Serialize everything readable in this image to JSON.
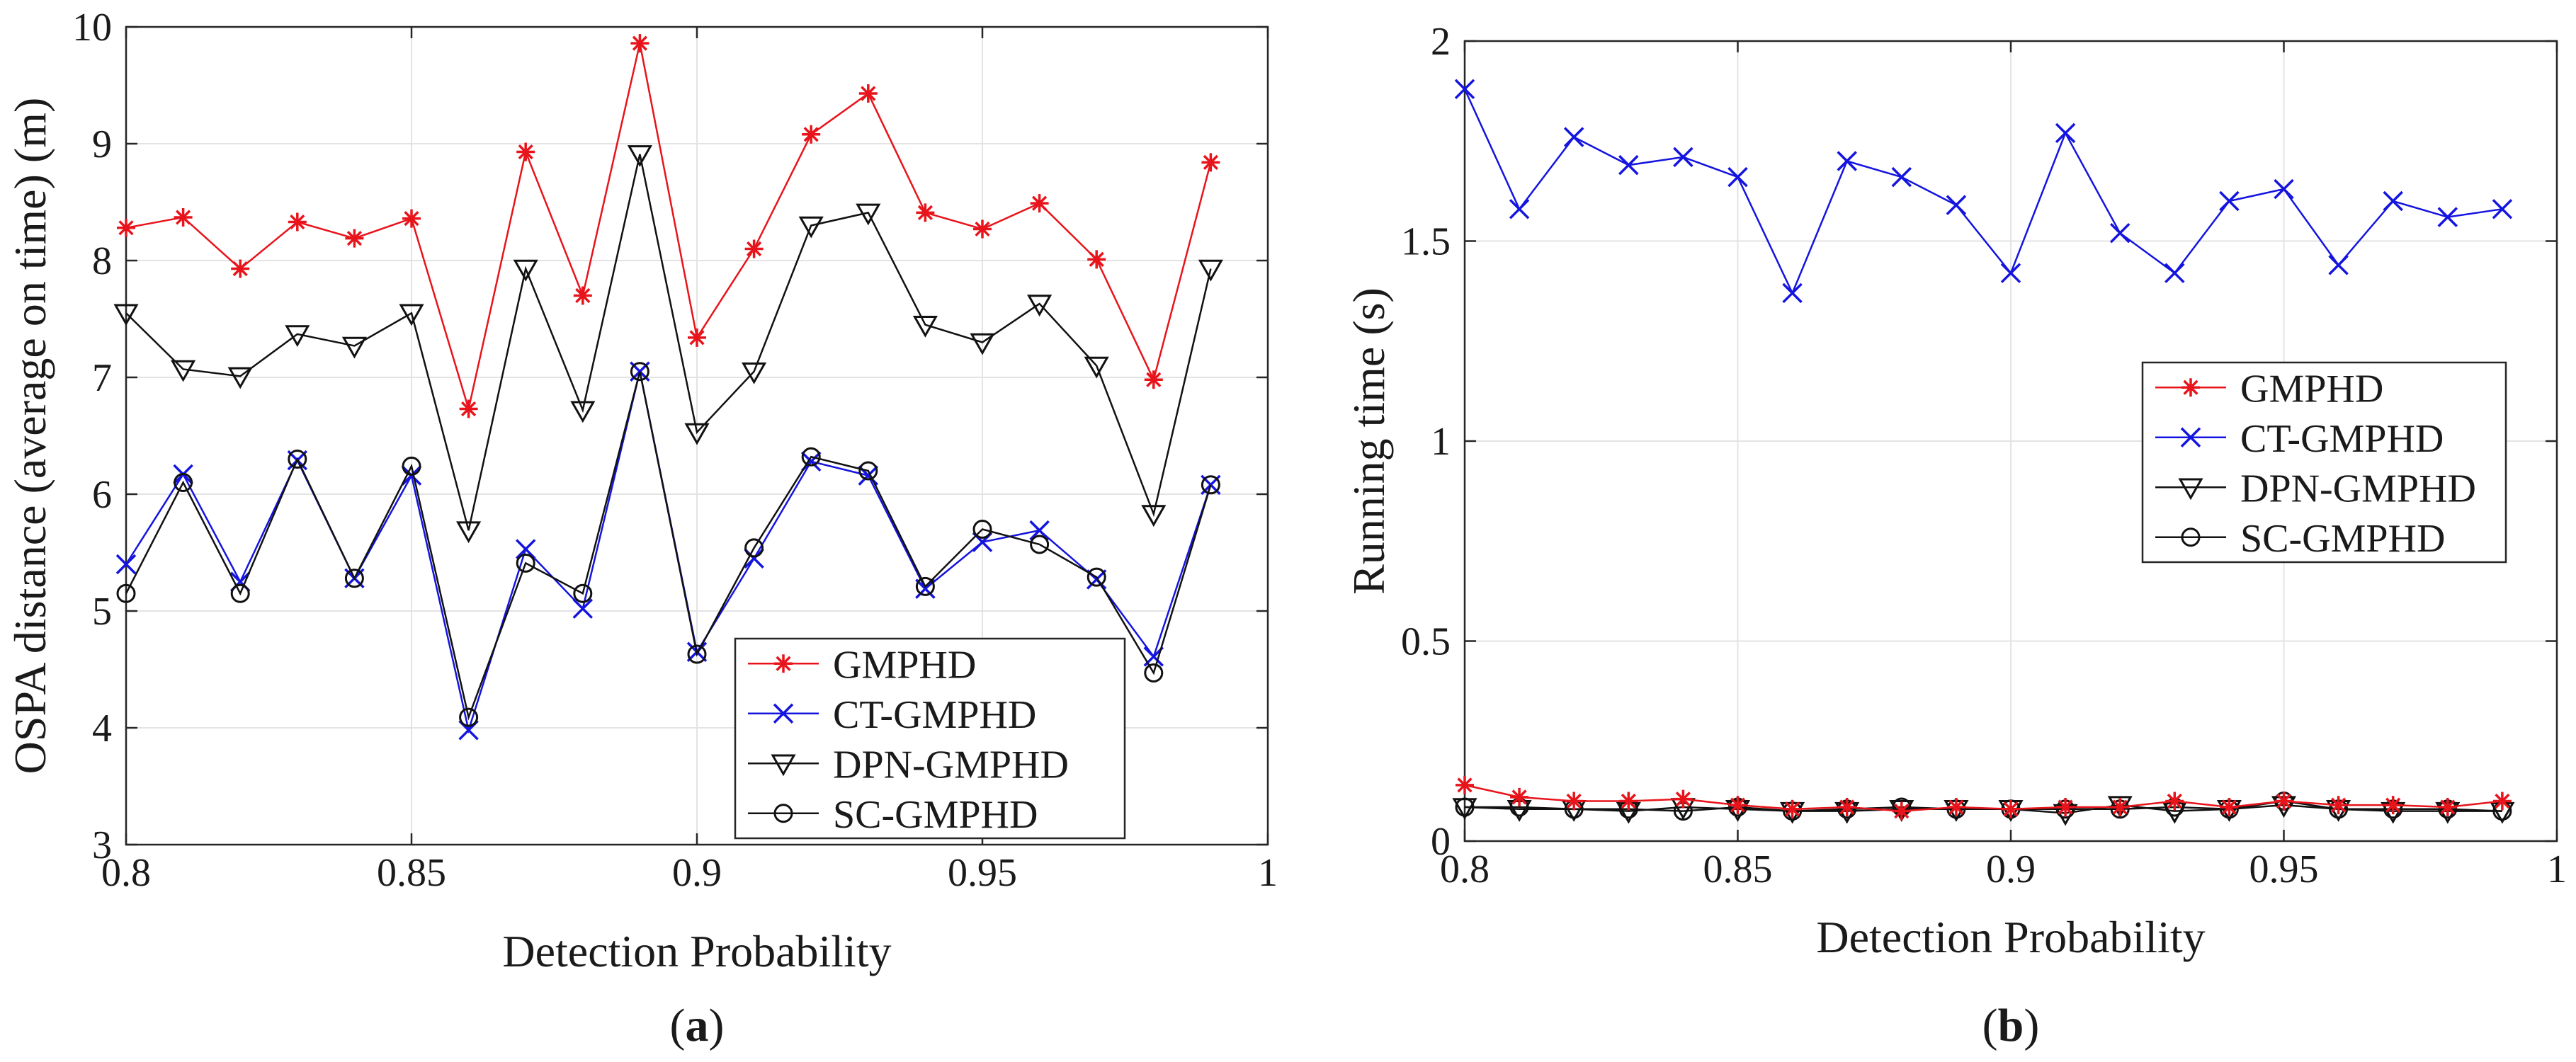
{
  "chart_data": [
    {
      "type": "line",
      "panel_label_prefix": "(",
      "panel_label": "a",
      "panel_label_suffix": ")",
      "xlabel": "Detection Probability",
      "ylabel": "OSPA distance (average on time) (m)",
      "xlim": [
        0.8,
        1.0
      ],
      "ylim": [
        3,
        10
      ],
      "xticks": [
        0.8,
        0.85,
        0.9,
        0.95,
        1.0
      ],
      "xtick_labels": [
        "0.8",
        "0.85",
        "0.9",
        "0.95",
        "1"
      ],
      "yticks": [
        3,
        4,
        5,
        6,
        7,
        8,
        9,
        10
      ],
      "ytick_labels": [
        "3",
        "4",
        "5",
        "6",
        "7",
        "8",
        "9",
        "10"
      ],
      "grid": true,
      "legend_position": "bottom-right",
      "x": [
        0.8,
        0.81,
        0.82,
        0.83,
        0.84,
        0.85,
        0.86,
        0.87,
        0.88,
        0.89,
        0.9,
        0.91,
        0.92,
        0.93,
        0.94,
        0.95,
        0.96,
        0.97,
        0.98,
        0.99
      ],
      "series": [
        {
          "name": "GMPHD",
          "color": "#e8141b",
          "marker": "asterisk",
          "values": [
            8.28,
            8.37,
            7.93,
            8.33,
            8.19,
            8.36,
            6.73,
            8.93,
            7.7,
            9.86,
            7.34,
            8.1,
            9.08,
            9.43,
            8.41,
            8.27,
            8.49,
            8.01,
            6.98,
            8.84
          ]
        },
        {
          "name": "CT-GMPHD",
          "color": "#1414e0",
          "marker": "x",
          "values": [
            5.4,
            6.17,
            5.25,
            6.29,
            5.28,
            6.16,
            3.98,
            5.53,
            5.02,
            7.05,
            4.65,
            5.45,
            6.28,
            6.16,
            5.19,
            5.59,
            5.69,
            5.27,
            4.61,
            6.08
          ]
        },
        {
          "name": "DPN-GMPHD",
          "color": "#111111",
          "marker": "triangle-down",
          "values": [
            7.55,
            7.07,
            7.01,
            7.37,
            7.27,
            7.55,
            5.69,
            7.93,
            6.72,
            8.91,
            6.53,
            7.05,
            8.3,
            8.41,
            7.45,
            7.3,
            7.63,
            7.1,
            5.83,
            7.93
          ]
        },
        {
          "name": "SC-GMPHD",
          "color": "#111111",
          "marker": "circle",
          "values": [
            5.15,
            6.1,
            5.15,
            6.3,
            5.28,
            6.24,
            4.09,
            5.41,
            5.15,
            7.05,
            4.63,
            5.54,
            6.32,
            6.2,
            5.21,
            5.7,
            5.57,
            5.29,
            4.47,
            6.08
          ]
        }
      ]
    },
    {
      "type": "line",
      "panel_label_prefix": "(",
      "panel_label": "b",
      "panel_label_suffix": ")",
      "xlabel": "Detection Probability",
      "ylabel": "Running time (s)",
      "xlim": [
        0.8,
        1.0
      ],
      "ylim": [
        0,
        2
      ],
      "xticks": [
        0.8,
        0.85,
        0.9,
        0.95,
        1.0
      ],
      "xtick_labels": [
        "0.8",
        "0.85",
        "0.9",
        "0.95",
        "1"
      ],
      "yticks": [
        0,
        0.5,
        1,
        1.5,
        2
      ],
      "ytick_labels": [
        "0",
        "0.5",
        "1",
        "1.5",
        "2"
      ],
      "grid": true,
      "legend_position": "middle-right",
      "x": [
        0.8,
        0.81,
        0.82,
        0.83,
        0.84,
        0.85,
        0.86,
        0.87,
        0.88,
        0.89,
        0.9,
        0.91,
        0.92,
        0.93,
        0.94,
        0.95,
        0.96,
        0.97,
        0.98,
        0.99
      ],
      "series": [
        {
          "name": "GMPHD",
          "color": "#e8141b",
          "marker": "asterisk",
          "values": [
            0.14,
            0.11,
            0.1,
            0.1,
            0.105,
            0.09,
            0.08,
            0.085,
            0.075,
            0.085,
            0.08,
            0.085,
            0.085,
            0.1,
            0.085,
            0.1,
            0.09,
            0.09,
            0.085,
            0.1
          ]
        },
        {
          "name": "CT-GMPHD",
          "color": "#1414e0",
          "marker": "x",
          "values": [
            1.88,
            1.58,
            1.76,
            1.69,
            1.71,
            1.66,
            1.37,
            1.7,
            1.66,
            1.59,
            1.42,
            1.77,
            1.52,
            1.42,
            1.6,
            1.63,
            1.44,
            1.6,
            1.56,
            1.58
          ]
        },
        {
          "name": "DPN-GMPHD",
          "color": "#111111",
          "marker": "triangle-down",
          "values": [
            0.085,
            0.08,
            0.08,
            0.075,
            0.085,
            0.08,
            0.075,
            0.075,
            0.08,
            0.08,
            0.08,
            0.07,
            0.09,
            0.075,
            0.08,
            0.09,
            0.08,
            0.075,
            0.075,
            0.075
          ]
        },
        {
          "name": "SC-GMPHD",
          "color": "#111111",
          "marker": "circle",
          "values": [
            0.085,
            0.085,
            0.08,
            0.08,
            0.075,
            0.085,
            0.075,
            0.08,
            0.085,
            0.08,
            0.08,
            0.08,
            0.08,
            0.085,
            0.08,
            0.1,
            0.08,
            0.08,
            0.08,
            0.075
          ]
        }
      ]
    }
  ]
}
